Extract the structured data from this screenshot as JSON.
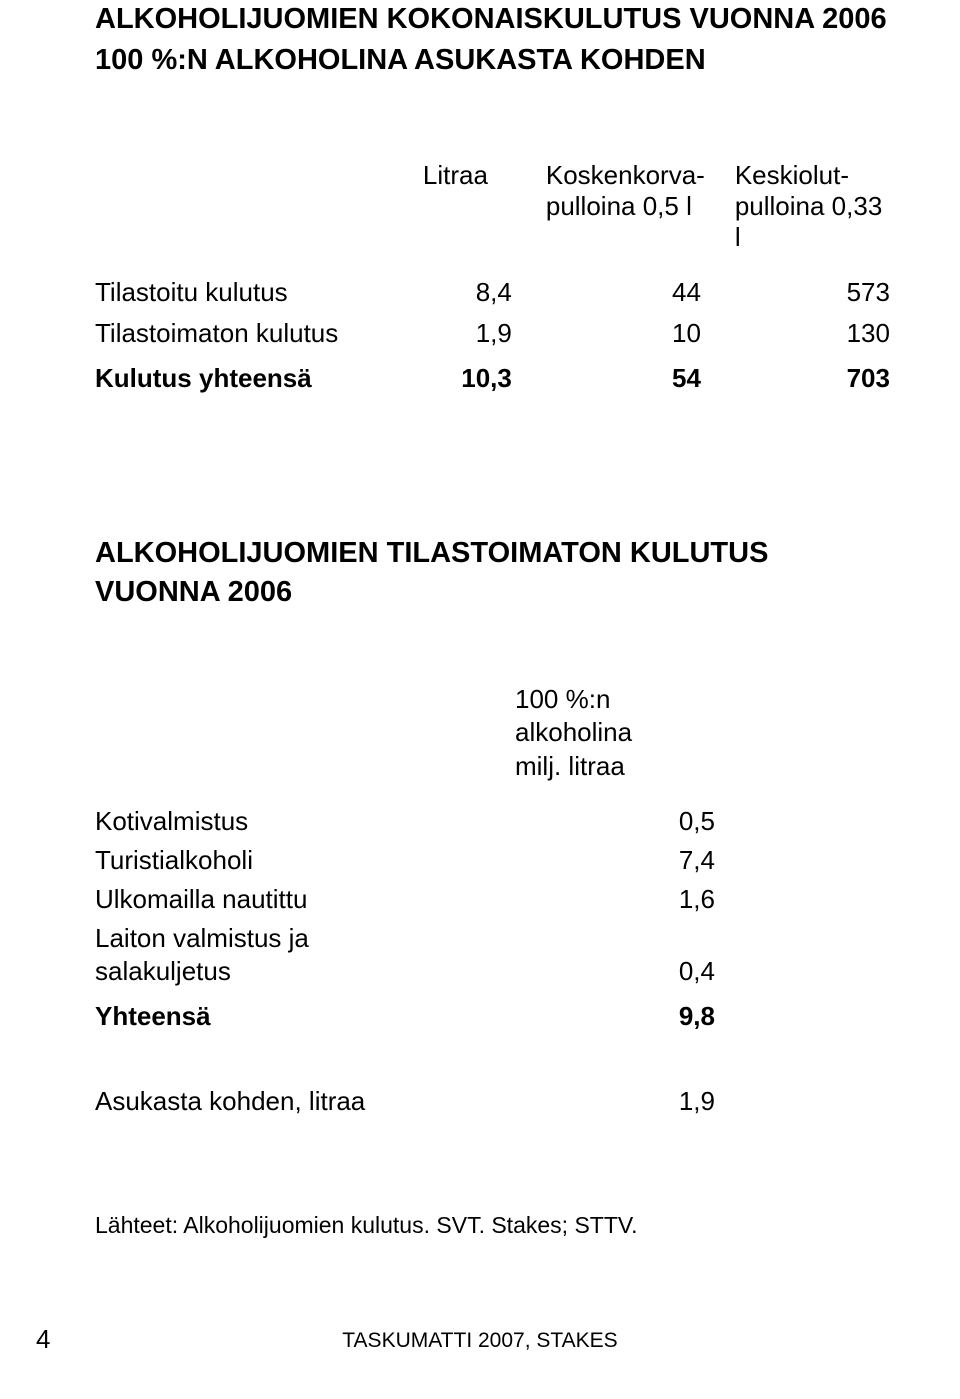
{
  "title1_line1": "ALKOHOLIJUOMIEN KOKONAISKULUTUS VUONNA 2006",
  "title1_line2": "100 %:N ALKOHOLINA ASUKASTA KOHDEN",
  "table1": {
    "header": {
      "col_a_line1": "Litraa",
      "col_b_line1": "Koskenkorva-",
      "col_b_line2": "pulloina 0,5 l",
      "col_c_line1": "Keskiolut-",
      "col_c_line2": "pulloina 0,33 l"
    },
    "rows": [
      {
        "label": "Tilastoitu kulutus",
        "a": "8,4",
        "b": "44",
        "c": "573",
        "bold": false
      },
      {
        "label": "Tilastoimaton kulutus",
        "a": "1,9",
        "b": "10",
        "c": "130",
        "bold": false
      }
    ],
    "sum": {
      "label": "Kulutus yhteensä",
      "a": "10,3",
      "b": "54",
      "c": "703"
    }
  },
  "title2_line1": "ALKOHOLIJUOMIEN TILASTOIMATON KULUTUS",
  "title2_line2": "VUONNA 2006",
  "table2": {
    "header_line1": "100 %:n alkoholina",
    "header_line2": "milj. litraa",
    "rows": [
      {
        "label": "Kotivalmistus",
        "value": "0,5"
      },
      {
        "label": "Turistialkoholi",
        "value": "7,4"
      },
      {
        "label": "Ulkomailla nautittu",
        "value": "1,6"
      },
      {
        "label": "Laiton valmistus ja",
        "value": ""
      },
      {
        "label": "salakuljetus",
        "value": "0,4"
      }
    ],
    "sum": {
      "label": "Yhteensä",
      "value": "9,8"
    },
    "per_capita": {
      "label": "Asukasta kohden, litraa",
      "value": "1,9"
    }
  },
  "sources": "Lähteet: Alkoholijuomien kulutus. SVT. Stakes; STTV.",
  "footer": "TASKUMATTI 2007, STAKES",
  "page_number": "4",
  "colors": {
    "text": "#000000",
    "background": "#ffffff"
  },
  "typography": {
    "title_fontsize": 29,
    "body_fontsize": 26,
    "footer_fontsize": 21
  }
}
